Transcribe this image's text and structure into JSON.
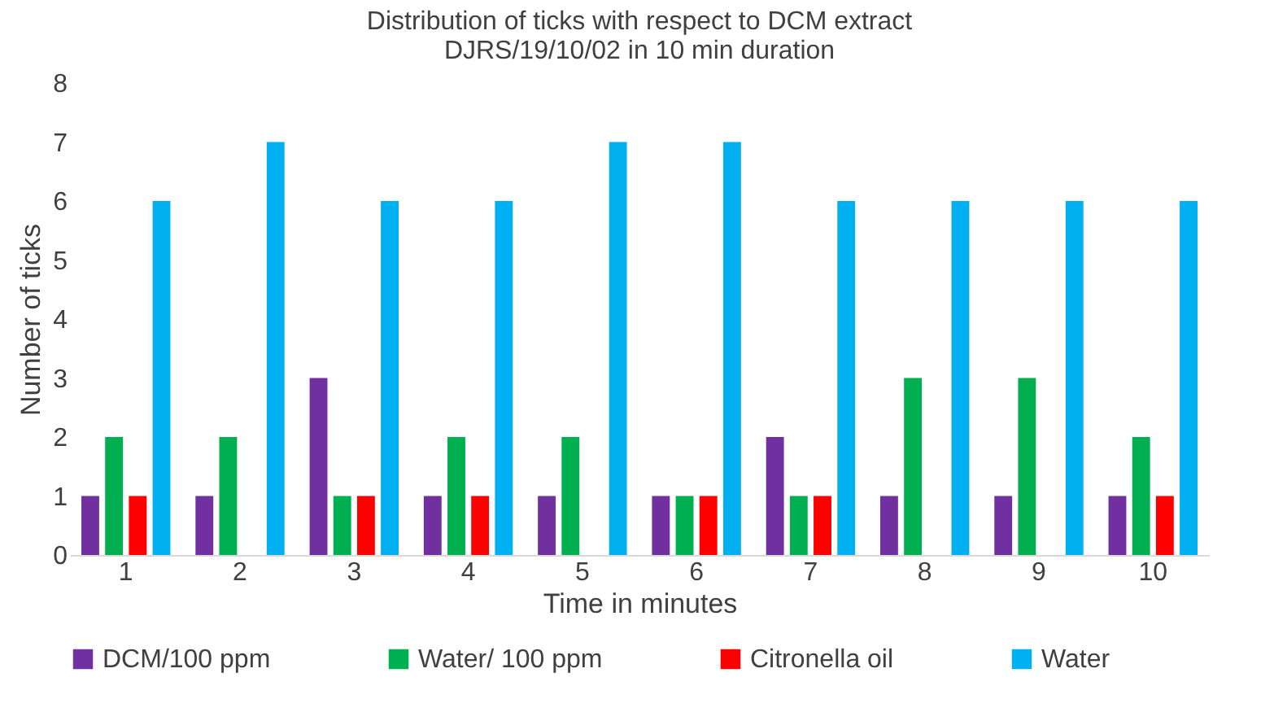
{
  "chart_data": {
    "type": "bar",
    "title": "Distribution of ticks with respect to DCM extract\nDJRS/19/10/02 in 10 min duration",
    "xlabel": "Time in minutes",
    "ylabel": "Number of ticks",
    "categories": [
      "1",
      "2",
      "3",
      "4",
      "5",
      "6",
      "7",
      "8",
      "9",
      "10"
    ],
    "series": [
      {
        "name": "DCM/100 ppm",
        "color": "#7030a0",
        "values": [
          1,
          1,
          3,
          1,
          1,
          1,
          2,
          1,
          1,
          1
        ]
      },
      {
        "name": "Water/ 100 ppm",
        "color": "#00b050",
        "values": [
          2,
          2,
          1,
          2,
          2,
          1,
          1,
          3,
          3,
          2
        ]
      },
      {
        "name": "Citronella oil",
        "color": "#ff0000",
        "values": [
          1,
          0,
          1,
          1,
          0,
          1,
          1,
          0,
          0,
          1
        ]
      },
      {
        "name": "Water",
        "color": "#00b0f0",
        "values": [
          6,
          7,
          6,
          6,
          7,
          7,
          6,
          6,
          6,
          6
        ]
      }
    ],
    "ylim": [
      0,
      8
    ],
    "yticks": [
      0,
      1,
      2,
      3,
      4,
      5,
      6,
      7,
      8
    ],
    "grid": false,
    "legend": "bottom"
  }
}
